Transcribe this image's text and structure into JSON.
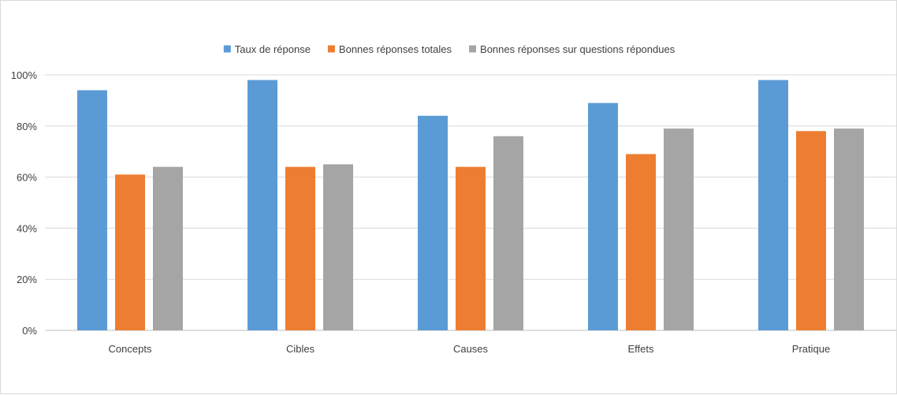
{
  "chart_data": {
    "type": "bar",
    "title": "",
    "xlabel": "",
    "ylabel": "",
    "categories": [
      "Concepts",
      "Cibles",
      "Causes",
      "Effets",
      "Pratique"
    ],
    "series": [
      {
        "name": "Taux de réponse",
        "color": "#5B9BD5",
        "values": [
          94,
          98,
          84,
          89,
          98
        ]
      },
      {
        "name": "Bonnes réponses totales",
        "color": "#ED7D31",
        "values": [
          61,
          64,
          64,
          69,
          78
        ]
      },
      {
        "name": "Bonnes réponses sur questions répondues",
        "color": "#A5A5A5",
        "values": [
          64,
          65,
          76,
          79,
          79
        ]
      }
    ],
    "ylim": [
      0,
      100
    ],
    "y_ticks": [
      "0%",
      "20%",
      "40%",
      "60%",
      "80%",
      "100%"
    ],
    "y_tick_values": [
      0,
      20,
      40,
      60,
      80,
      100
    ],
    "grid": true,
    "legend_position": "top"
  }
}
